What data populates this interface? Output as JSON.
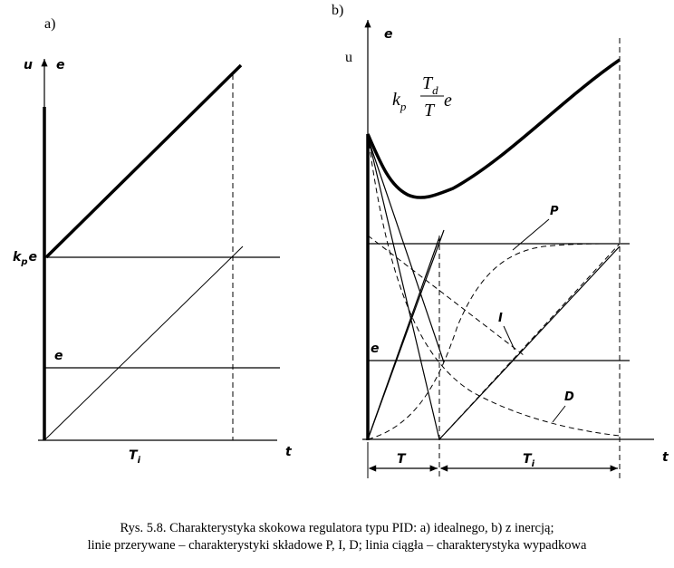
{
  "panel_a": {
    "label": "a)",
    "axis_y_u": "u",
    "axis_y_e": "e",
    "axis_x": "t",
    "level_kpe": "k",
    "level_kpe_sub": "p",
    "level_kpe_e": "e",
    "level_e": "e",
    "time_const": "T",
    "time_const_sub": "i"
  },
  "panel_b": {
    "label": "b)",
    "axis_y_u": "u",
    "axis_y_e": "e",
    "axis_x": "t",
    "formula_k": "k",
    "formula_k_sub": "p",
    "formula_num": "T",
    "formula_num_sub": "d",
    "formula_den": "T",
    "formula_e": "e",
    "curve_P": "P",
    "curve_I": "I",
    "curve_D": "D",
    "level_e": "e",
    "interval_T": "T",
    "interval_Ti": "T",
    "interval_Ti_sub": "i"
  },
  "caption": {
    "line1": "Rys. 5.8. Charakterystyka skokowa regulatora typu PID: a) idealnego, b) z inercją;",
    "line2": "linie przerywane – charakterystyki składowe P, I, D; linia ciągła – charakterystyka wypadkowa"
  }
}
